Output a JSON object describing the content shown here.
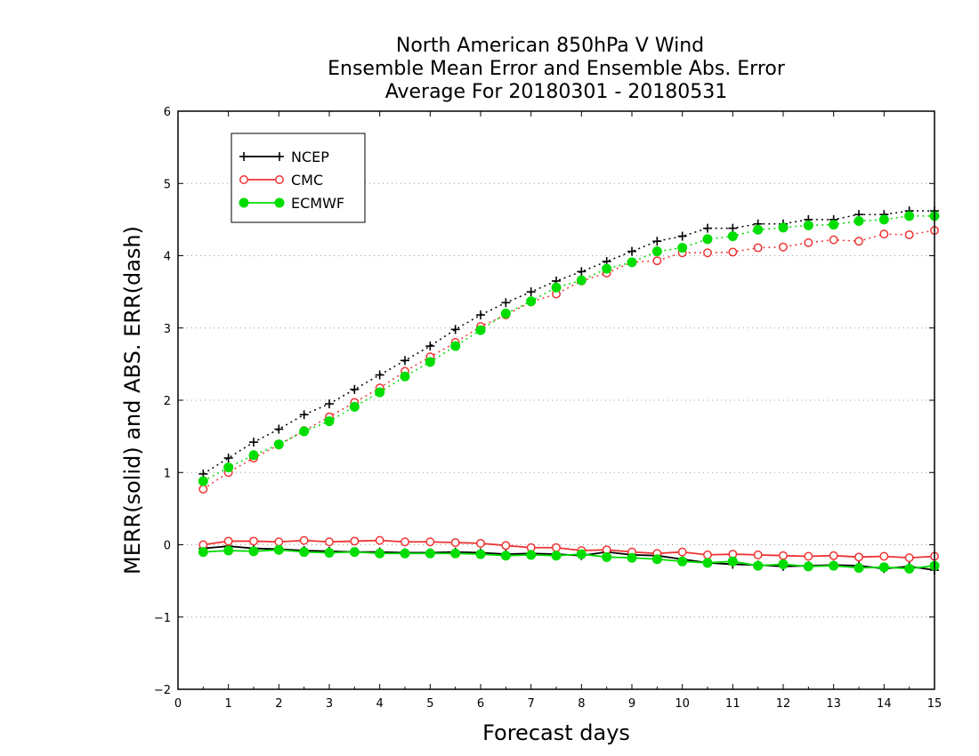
{
  "chart_data": {
    "type": "line",
    "title_lines": [
      "North American 850hPa V Wind",
      "Ensemble Mean Error and Ensemble Abs. Error",
      "Average For 20180301 - 20180531"
    ],
    "xlabel": "Forecast days",
    "ylabel": "MERR(solid) and ABS. ERR(dash)",
    "xlim": [
      0,
      15
    ],
    "ylim": [
      -2,
      6
    ],
    "x_ticks": [
      0,
      1,
      2,
      3,
      4,
      5,
      6,
      7,
      8,
      9,
      10,
      11,
      12,
      13,
      14,
      15
    ],
    "y_ticks": [
      -2,
      -1,
      0,
      1,
      2,
      3,
      4,
      5,
      6
    ],
    "grid": "horizontal-dotted",
    "legend_position": "top-left",
    "x": [
      0.5,
      1,
      1.5,
      2,
      2.5,
      3,
      3.5,
      4,
      4.5,
      5,
      5.5,
      6,
      6.5,
      7,
      7.5,
      8,
      8.5,
      9,
      9.5,
      10,
      10.5,
      11,
      11.5,
      12,
      12.5,
      13,
      13.5,
      14,
      14.5,
      15
    ],
    "series": [
      {
        "name": "NCEP",
        "color": "#000000",
        "marker": "plus",
        "abs_err": [
          0.98,
          1.2,
          1.42,
          1.6,
          1.8,
          1.95,
          2.15,
          2.35,
          2.55,
          2.75,
          2.98,
          3.18,
          3.35,
          3.5,
          3.65,
          3.78,
          3.92,
          4.06,
          4.2,
          4.27,
          4.38,
          4.38,
          4.44,
          4.44,
          4.5,
          4.5,
          4.57,
          4.57,
          4.62,
          4.62
        ],
        "mean_err": [
          -0.05,
          -0.02,
          -0.05,
          -0.06,
          -0.08,
          -0.09,
          -0.1,
          -0.1,
          -0.11,
          -0.11,
          -0.1,
          -0.11,
          -0.13,
          -0.12,
          -0.13,
          -0.15,
          -0.1,
          -0.14,
          -0.15,
          -0.2,
          -0.25,
          -0.27,
          -0.28,
          -0.3,
          -0.29,
          -0.28,
          -0.29,
          -0.33,
          -0.3,
          -0.35
        ]
      },
      {
        "name": "CMC",
        "color": "#ee3333",
        "marker": "open-circle",
        "abs_err": [
          0.77,
          1.0,
          1.2,
          1.38,
          1.58,
          1.77,
          1.97,
          2.17,
          2.4,
          2.6,
          2.8,
          3.02,
          3.18,
          3.36,
          3.47,
          3.65,
          3.76,
          3.91,
          3.93,
          4.04,
          4.04,
          4.05,
          4.11,
          4.12,
          4.18,
          4.22,
          4.2,
          4.3,
          4.29,
          4.35
        ],
        "mean_err": [
          0.0,
          0.05,
          0.05,
          0.04,
          0.06,
          0.04,
          0.05,
          0.06,
          0.04,
          0.04,
          0.03,
          0.02,
          -0.01,
          -0.04,
          -0.04,
          -0.08,
          -0.07,
          -0.1,
          -0.12,
          -0.1,
          -0.14,
          -0.13,
          -0.14,
          -0.15,
          -0.16,
          -0.15,
          -0.17,
          -0.16,
          -0.18,
          -0.16
        ]
      },
      {
        "name": "ECMWF",
        "color": "#00dd00",
        "marker": "filled-circle",
        "abs_err": [
          0.88,
          1.07,
          1.24,
          1.39,
          1.57,
          1.71,
          1.91,
          2.11,
          2.33,
          2.53,
          2.75,
          2.97,
          3.2,
          3.37,
          3.56,
          3.66,
          3.82,
          3.91,
          4.06,
          4.11,
          4.23,
          4.27,
          4.36,
          4.39,
          4.42,
          4.43,
          4.48,
          4.5,
          4.55,
          4.55
        ],
        "mean_err": [
          -0.1,
          -0.08,
          -0.09,
          -0.07,
          -0.1,
          -0.11,
          -0.1,
          -0.12,
          -0.12,
          -0.12,
          -0.12,
          -0.13,
          -0.15,
          -0.14,
          -0.15,
          -0.13,
          -0.17,
          -0.18,
          -0.2,
          -0.23,
          -0.25,
          -0.23,
          -0.29,
          -0.27,
          -0.3,
          -0.29,
          -0.32,
          -0.31,
          -0.33,
          -0.29
        ]
      }
    ]
  }
}
